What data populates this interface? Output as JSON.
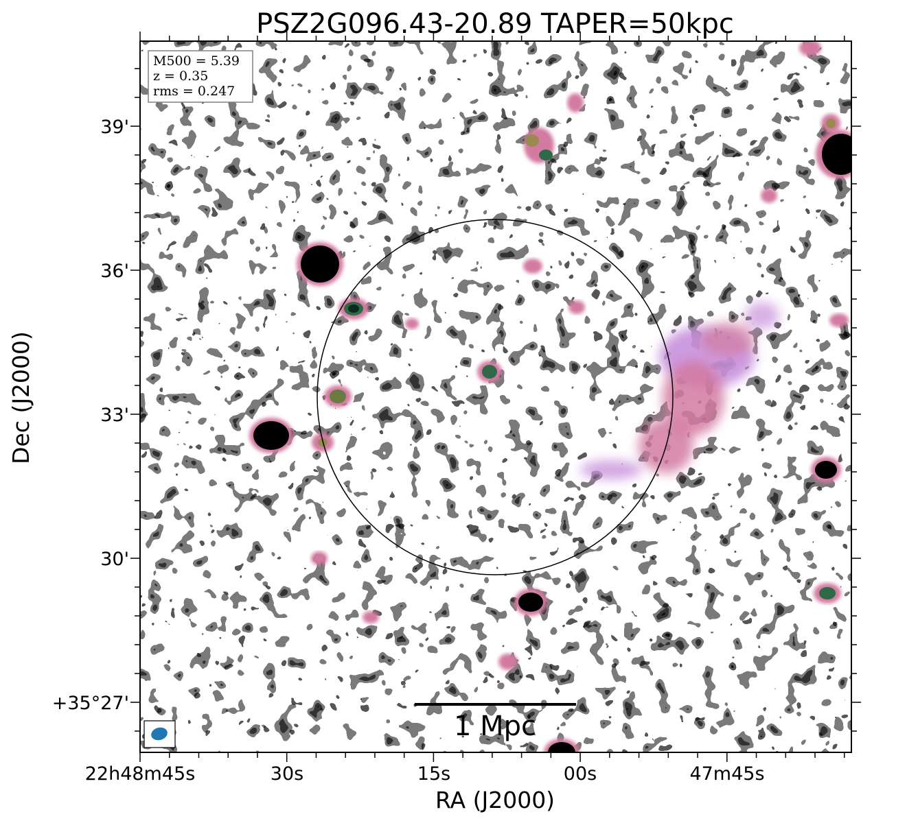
{
  "figure": {
    "title": "PSZ2G096.43-20.89 TAPER=50kpc",
    "xlabel": "RA (J2000)",
    "ylabel": "Dec (J2000)",
    "x_ticks": [
      "22h48m45s",
      "30s",
      "15s",
      "00s",
      "47m45s"
    ],
    "y_ticks": [
      "39'",
      "36'",
      "33'",
      "30'",
      "+35°27'"
    ],
    "info_box": [
      "M500 = 5.39",
      "z = 0.35",
      "rms = 0.247"
    ],
    "scale_bar_label": "1 Mpc",
    "beam_color": "#1f77b4",
    "colormap": [
      "#ffffff",
      "#c8e8ee",
      "#b8b8ee",
      "#c890dc",
      "#d27aa0",
      "#9a8a50",
      "#2f6a48",
      "#000000"
    ],
    "circle_color": "#000000"
  }
}
